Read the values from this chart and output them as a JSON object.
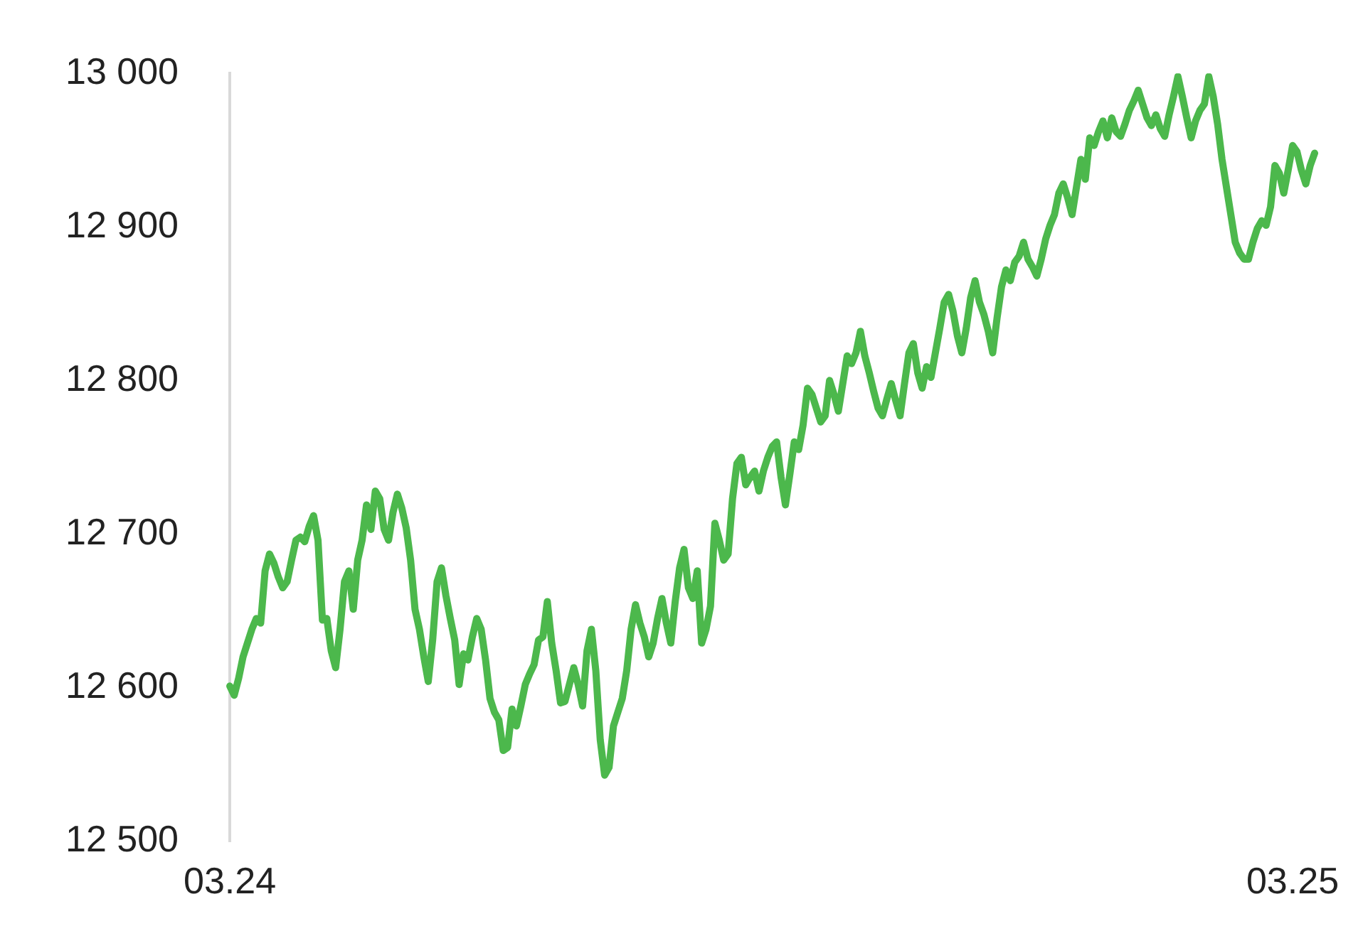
{
  "chart_data": {
    "type": "line",
    "color": "#4cb84c",
    "grid": false,
    "legend": false,
    "marker": "none",
    "line_style": "solid",
    "ylim": [
      12500,
      13000
    ],
    "yticks": [
      {
        "value": 12500,
        "label": "12 500"
      },
      {
        "value": 12600,
        "label": "12 600"
      },
      {
        "value": 12700,
        "label": "12 700"
      },
      {
        "value": 12800,
        "label": "12 800"
      },
      {
        "value": 12900,
        "label": "12 900"
      },
      {
        "value": 13000,
        "label": "13 000"
      }
    ],
    "categories": [
      "03.24",
      null,
      null,
      null,
      null,
      null,
      null,
      null,
      null,
      null,
      null,
      null,
      null,
      null,
      null,
      null,
      null,
      null,
      null,
      null,
      null,
      null,
      null,
      null,
      null,
      null,
      null,
      null,
      null,
      null,
      null,
      null,
      null,
      null,
      null,
      null,
      null,
      null,
      null,
      null,
      null,
      null,
      null,
      null,
      null,
      null,
      null,
      null,
      null,
      null,
      null,
      null,
      null,
      null,
      null,
      null,
      null,
      null,
      null,
      null,
      null,
      null,
      null,
      null,
      null,
      null,
      null,
      null,
      null,
      null,
      null,
      null,
      null,
      null,
      null,
      null,
      null,
      null,
      null,
      null,
      null,
      null,
      null,
      null,
      null,
      null,
      null,
      null,
      null,
      null,
      null,
      null,
      null,
      null,
      null,
      null,
      null,
      null,
      null,
      null,
      null,
      null,
      null,
      null,
      null,
      null,
      null,
      null,
      null,
      null,
      null,
      null,
      null,
      null,
      null,
      null,
      null,
      null,
      null,
      null,
      null,
      null,
      null,
      null,
      null,
      null,
      null,
      null,
      null,
      null,
      null,
      null,
      null,
      null,
      null,
      null,
      null,
      null,
      null,
      null,
      null,
      null,
      null,
      null,
      null,
      null,
      null,
      null,
      null,
      null,
      null,
      null,
      null,
      null,
      null,
      null,
      null,
      null,
      null,
      null,
      null,
      null,
      null,
      null,
      null,
      null,
      null,
      null,
      null,
      null,
      null,
      null,
      null,
      null,
      null,
      null,
      null,
      null,
      null,
      null,
      null,
      null,
      null,
      null,
      null,
      null,
      null,
      null,
      null,
      null,
      null,
      null,
      null,
      null,
      null,
      null,
      null,
      null,
      null,
      null,
      null,
      null,
      null,
      null,
      null,
      null,
      null,
      null,
      null,
      null,
      null,
      null,
      null,
      null,
      null,
      null,
      null,
      null,
      null,
      null,
      null,
      null,
      null,
      null,
      null,
      null,
      null,
      null,
      null,
      null,
      null,
      null,
      null,
      null,
      null,
      null,
      null,
      null,
      null,
      null,
      null,
      "03.25",
      null,
      null,
      null,
      null,
      null
    ],
    "values": [
      12601,
      12595,
      12606,
      12620,
      12629,
      12638,
      12645,
      12642,
      12676,
      12687,
      12681,
      12672,
      12665,
      12669,
      12683,
      12696,
      12698,
      12695,
      12705,
      12712,
      12696,
      12644,
      12645,
      12624,
      12613,
      12638,
      12669,
      12676,
      12651,
      12683,
      12696,
      12719,
      12703,
      12728,
      12723,
      12703,
      12696,
      12714,
      12726,
      12717,
      12704,
      12683,
      12651,
      12638,
      12620,
      12604,
      12631,
      12669,
      12678,
      12660,
      12645,
      12631,
      12602,
      12622,
      12618,
      12633,
      12645,
      12638,
      12618,
      12593,
      12584,
      12579,
      12559,
      12561,
      12586,
      12575,
      12588,
      12602,
      12609,
      12615,
      12631,
      12633,
      12656,
      12629,
      12611,
      12590,
      12591,
      12602,
      12613,
      12602,
      12588,
      12624,
      12638,
      12611,
      12566,
      12543,
      12548,
      12575,
      12584,
      12593,
      12611,
      12638,
      12654,
      12642,
      12633,
      12620,
      12629,
      12645,
      12658,
      12642,
      12629,
      12656,
      12678,
      12690,
      12665,
      12658,
      12676,
      12629,
      12638,
      12653,
      12707,
      12696,
      12683,
      12687,
      12723,
      12746,
      12750,
      12732,
      12737,
      12741,
      12728,
      12741,
      12750,
      12757,
      12760,
      12737,
      12719,
      12739,
      12760,
      12755,
      12771,
      12795,
      12791,
      12782,
      12773,
      12777,
      12800,
      12791,
      12780,
      12798,
      12816,
      12811,
      12818,
      12832,
      12816,
      12805,
      12793,
      12782,
      12777,
      12788,
      12798,
      12787,
      12777,
      12798,
      12818,
      12824,
      12805,
      12795,
      12809,
      12802,
      12818,
      12834,
      12851,
      12856,
      12845,
      12829,
      12818,
      12834,
      12854,
      12865,
      12851,
      12843,
      12832,
      12818,
      12841,
      12861,
      12872,
      12865,
      12877,
      12881,
      12890,
      12879,
      12874,
      12868,
      12879,
      12892,
      12901,
      12908,
      12922,
      12928,
      12919,
      12908,
      12926,
      12944,
      12931,
      12958,
      12953,
      12962,
      12969,
      12958,
      12971,
      12962,
      12959,
      12967,
      12976,
      12982,
      12989,
      12980,
      12971,
      12966,
      12973,
      12964,
      12959,
      12973,
      12985,
      12998,
      12985,
      12971,
      12958,
      12969,
      12976,
      12980,
      12998,
      12985,
      12967,
      12944,
      12926,
      12908,
      12890,
      12883,
      12879,
      12879,
      12890,
      12899,
      12904,
      12901,
      12913,
      12940,
      12935,
      12922,
      12937,
      12953,
      12949,
      12937,
      12928,
      12940,
      12948
    ]
  }
}
